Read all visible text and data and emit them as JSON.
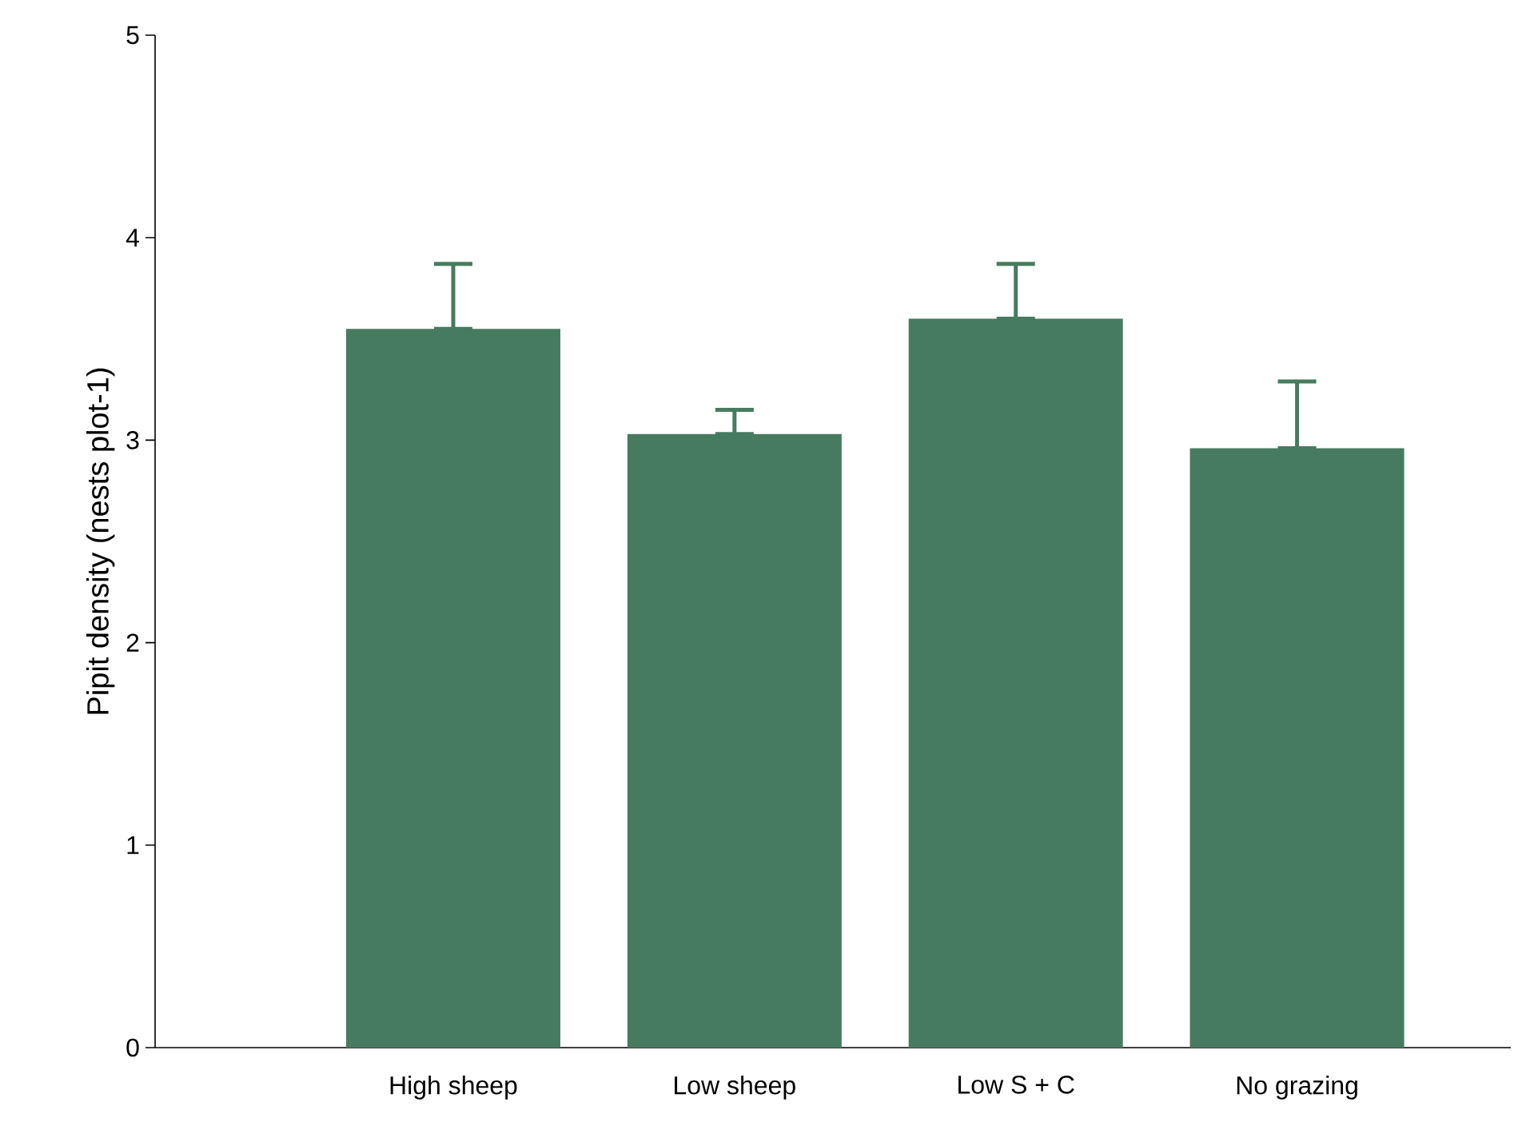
{
  "chart_data": {
    "type": "bar",
    "ylabel": "Pipit density (nests plot-1)",
    "categories": [
      "High sheep",
      "Low sheep",
      "Low S + C",
      "No grazing"
    ],
    "values": [
      3.55,
      3.03,
      3.6,
      2.96
    ],
    "errors": [
      [
        3.55,
        3.87
      ],
      [
        3.03,
        3.15
      ],
      [
        3.6,
        3.87
      ],
      [
        2.96,
        3.29
      ]
    ],
    "color": "#477b5f",
    "ylim": [
      0,
      5
    ],
    "yticks": [
      0,
      1,
      2,
      3,
      4,
      5
    ],
    "grid": false
  }
}
